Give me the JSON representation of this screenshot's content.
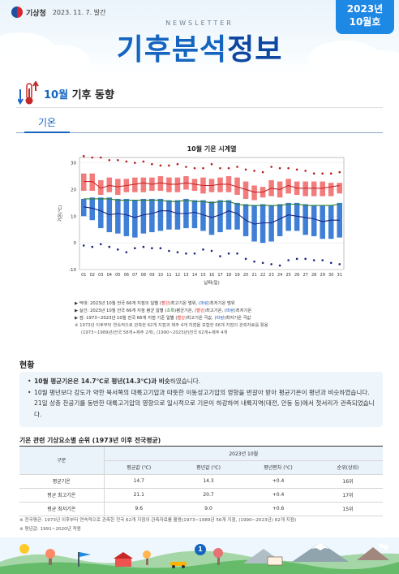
{
  "header": {
    "org": "기상청",
    "issue_date": "2023. 11. 7. 발간",
    "newsletter": "NEWSLETTER",
    "title_main": "기후분석",
    "title_sub": "정보",
    "badge_year": "2023년",
    "badge_month": "10월호"
  },
  "section": {
    "title_accent": "10월",
    "title_rest": " 기후 동향",
    "tab": "기온"
  },
  "chart_data": {
    "type": "line",
    "title": "10월 기온 시계열",
    "xlabel": "날짜(일)",
    "ylabel": "기온(℃)",
    "ylim": [
      -10,
      32
    ],
    "yticks": [
      -10,
      0,
      10,
      20,
      30
    ],
    "x": [
      "01",
      "02",
      "03",
      "04",
      "05",
      "06",
      "07",
      "08",
      "09",
      "10",
      "11",
      "12",
      "13",
      "14",
      "15",
      "16",
      "17",
      "18",
      "19",
      "20",
      "21",
      "22",
      "23",
      "24",
      "25",
      "26",
      "27",
      "28",
      "29",
      "30",
      "31"
    ],
    "series": [
      {
        "name": "일최고기온 최대값",
        "color": "#b71c1c",
        "style": "dot",
        "values": [
          32.5,
          32.0,
          32.0,
          31.0,
          31.0,
          30.5,
          30.0,
          30.5,
          29.5,
          29.0,
          29.0,
          29.5,
          28.5,
          28.0,
          28.0,
          29.5,
          28.0,
          28.0,
          28.5,
          27.5,
          27.0,
          26.5,
          28.5,
          28.0,
          28.0,
          27.5,
          27.0,
          26.0,
          26.0,
          26.0,
          26.5
        ]
      },
      {
        "name": "일최고기온 범위 상한",
        "color": "#f27b7b",
        "style": "band-top",
        "values": [
          26.0,
          26.0,
          23.5,
          24.5,
          24.0,
          24.0,
          24.5,
          24.5,
          24.5,
          25.0,
          24.5,
          24.5,
          25.0,
          24.0,
          24.5,
          24.0,
          24.5,
          25.0,
          24.5,
          23.0,
          21.5,
          21.0,
          23.5,
          23.0,
          24.0,
          23.0,
          23.0,
          23.0,
          23.0,
          22.5,
          22.5
        ]
      },
      {
        "name": "일최고기온 범위 하한",
        "color": "#f27b7b",
        "style": "band-bottom",
        "values": [
          19.5,
          19.5,
          18.0,
          19.0,
          18.0,
          19.0,
          19.0,
          19.0,
          19.5,
          19.5,
          19.0,
          19.0,
          20.0,
          19.5,
          18.5,
          19.0,
          19.0,
          19.0,
          18.0,
          16.5,
          16.0,
          17.0,
          17.5,
          17.0,
          18.5,
          18.0,
          17.5,
          17.5,
          17.5,
          17.5,
          18.5
        ]
      },
      {
        "name": "평균 일최고기온",
        "color": "#c62828",
        "style": "line",
        "values": [
          23.0,
          23.0,
          20.5,
          21.5,
          21.0,
          21.5,
          22.0,
          22.5,
          22.0,
          22.5,
          22.0,
          22.0,
          22.5,
          22.0,
          21.5,
          21.5,
          22.0,
          22.0,
          21.0,
          20.0,
          19.0,
          19.0,
          20.5,
          20.0,
          21.5,
          20.5,
          20.5,
          20.5,
          20.5,
          21.0,
          21.5
        ]
      },
      {
        "name": "일최저기온 범위 상한",
        "color": "#3f7fd6",
        "style": "band-top",
        "values": [
          16.5,
          17.0,
          17.0,
          17.0,
          16.5,
          16.5,
          16.0,
          16.5,
          16.5,
          16.5,
          16.0,
          16.0,
          16.5,
          16.0,
          16.0,
          15.5,
          16.0,
          16.0,
          15.0,
          14.5,
          14.0,
          14.5,
          14.0,
          14.5,
          15.0,
          15.0,
          14.5,
          14.0,
          14.0,
          14.0,
          15.0
        ]
      },
      {
        "name": "평균 일평균기온",
        "color": "#2e7d32",
        "style": "line",
        "values": [
          16.5,
          16.5,
          16.5,
          16.5,
          16.0,
          16.0,
          16.0,
          16.0,
          16.0,
          16.0,
          15.5,
          15.5,
          16.0,
          15.5,
          15.5,
          15.0,
          15.5,
          15.5,
          14.5,
          14.0,
          14.0,
          14.0,
          14.0,
          14.0,
          14.5,
          14.5,
          14.0,
          14.0,
          14.0,
          14.0,
          14.5
        ]
      },
      {
        "name": "평균 일최저기온",
        "color": "#1a237e",
        "style": "line",
        "values": [
          13.5,
          13.0,
          12.0,
          10.5,
          11.0,
          10.5,
          9.5,
          10.5,
          11.0,
          12.0,
          12.0,
          11.0,
          11.0,
          11.5,
          10.5,
          9.5,
          10.5,
          12.0,
          11.0,
          8.5,
          7.0,
          7.5,
          7.5,
          9.0,
          10.5,
          10.0,
          9.5,
          9.0,
          8.0,
          8.5,
          8.5
        ]
      },
      {
        "name": "일최저기온 범위 하한",
        "color": "#3f7fd6",
        "style": "band-bottom",
        "values": [
          10.0,
          8.5,
          5.5,
          4.0,
          3.5,
          2.5,
          2.0,
          3.5,
          4.0,
          4.5,
          5.0,
          5.0,
          5.5,
          5.5,
          4.5,
          3.0,
          4.0,
          5.0,
          5.0,
          2.5,
          0.5,
          0.0,
          0.5,
          2.5,
          4.5,
          4.5,
          3.0,
          2.5,
          1.5,
          1.5,
          2.0
        ]
      },
      {
        "name": "일최저기온 최소값",
        "color": "#1a237e",
        "style": "dot",
        "values": [
          -1.0,
          -1.5,
          -0.5,
          -1.5,
          -2.5,
          -3.5,
          -2.0,
          -1.5,
          -2.0,
          -2.0,
          -3.0,
          -3.5,
          -4.0,
          -4.0,
          -2.5,
          -3.0,
          -5.0,
          -4.0,
          -4.0,
          -6.0,
          -7.0,
          -7.5,
          -8.0,
          -8.5,
          -6.5,
          -6.0,
          -6.0,
          -6.5,
          -6.5,
          -7.5,
          -8.0
        ]
      }
    ]
  },
  "legend": {
    "l1_a": "▶ 막대: 2023년 10월 전국 66개 지점의 일별 (",
    "l1_red": "빨강",
    "l1_b": ")최고기온 범위, (",
    "l1_blue": "파랑",
    "l1_c": ")최저기온 범위",
    "l2_a": "▶ 실선: 2023년 10월 전국 66개 지점 평균 일별 (",
    "l2_green": "초록",
    "l2_b": ")평균기온, (",
    "l2_red": "빨강",
    "l2_c": ")최고기온, (",
    "l2_blue": "파랑",
    "l2_d": ")최저기온",
    "l3_a": "▶ 점: 1973~2023년 10월 전국 66개 지점 기준 일별 (",
    "l3_red": "빨강",
    "l3_b": ")최고기온 극값, (",
    "l3_blue": "파랑",
    "l3_c": ")최저기온 극값",
    "l4": "※ 1973년 이후부터 연속적으로 관측한 62개 지점과 제주 4개 지점을 포함한 66개 지점의 관측자료를 활용",
    "l5": "(1973~1989년(전국 58개+제주 2개), (1990~2023년)전국 62개+제주 4개"
  },
  "status": {
    "title": "현황",
    "b1_bold": "10월 평균기온은 14.7℃로 평년(14.3℃)과 비슷",
    "b1_rest": "하였습니다.",
    "b2": "10월 평년보다 강도가 약한 북서쪽의 대륙고기압과 따뜻한 이동성고기압의 영향을 번갈아 받아 평균기온이 평년과 비슷하였습니다. 21일 상층 찬공기를 동반한 대륙고기압의 영향으로 일시적으로 기온이 하강하여 내륙지역(대전, 안동 등)에서 첫서리가 관측되었습니다."
  },
  "table": {
    "title": "기온 관련 기상요소별 순위 (1973년 이후 전국평균)",
    "col_group": "구분",
    "year_header": "2023년 10월",
    "headers": [
      "평균값 (℃)",
      "평년값 (℃)",
      "평년편차 (℃)",
      "순위(상위)"
    ],
    "rows": [
      {
        "label": "평균기온",
        "cells": [
          "14.7",
          "14.3",
          "+0.4",
          "16위"
        ]
      },
      {
        "label": "평균 최고기온",
        "cells": [
          "21.1",
          "20.7",
          "+0.4",
          "17위"
        ]
      },
      {
        "label": "평균 최저기온",
        "cells": [
          "9.6",
          "9.0",
          "+0.6",
          "15위"
        ]
      }
    ]
  },
  "footnotes": {
    "f1": "※ 전국평균: 1973년 이후부터 연속적으로 관측한 전국 62개 지점의 관측자료를 활용(1973~1989년 56개 지점, (1990~2023년) 62개 지점)",
    "f2": "※ 평년값: 1991~2020년 적용"
  },
  "page_number": "1",
  "colors": {
    "accent": "#1565c0",
    "badge": "#1e88e5",
    "max_band": "#f27b7b",
    "min_band": "#3f7fd6"
  }
}
